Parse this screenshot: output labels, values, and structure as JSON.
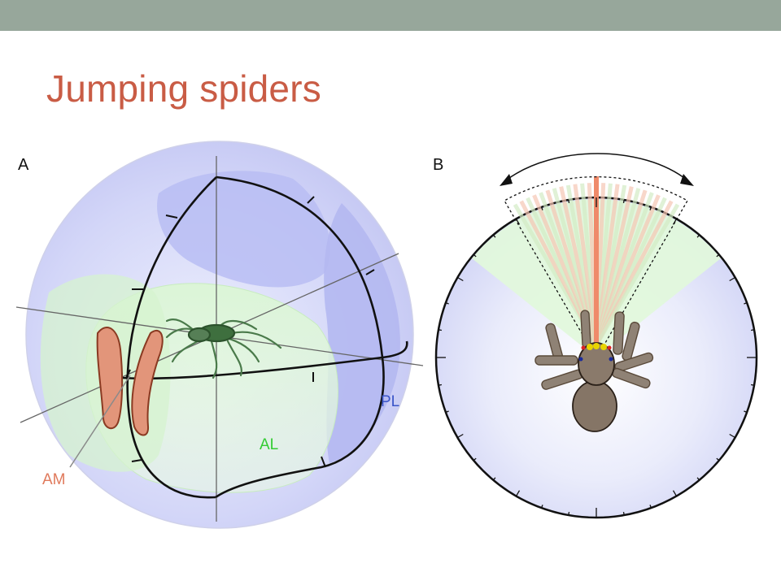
{
  "slide": {
    "title": "Jumping spiders"
  },
  "colors": {
    "top_bar": "#97a79b",
    "title": "#c95c45",
    "panel_label": "#111111",
    "am": "#e07a5c",
    "al": "#33cc33",
    "pl": "#3a55c8",
    "blue_fov": "#c6c9f5",
    "green_fov": "#dcf7d7",
    "outline": "#111111"
  },
  "panel_a": {
    "label": "A",
    "regions": [
      {
        "id": "am",
        "label": "AM"
      },
      {
        "id": "al",
        "label": "AL"
      },
      {
        "id": "pl",
        "label": "PL"
      }
    ]
  },
  "panel_b": {
    "label": "B"
  }
}
